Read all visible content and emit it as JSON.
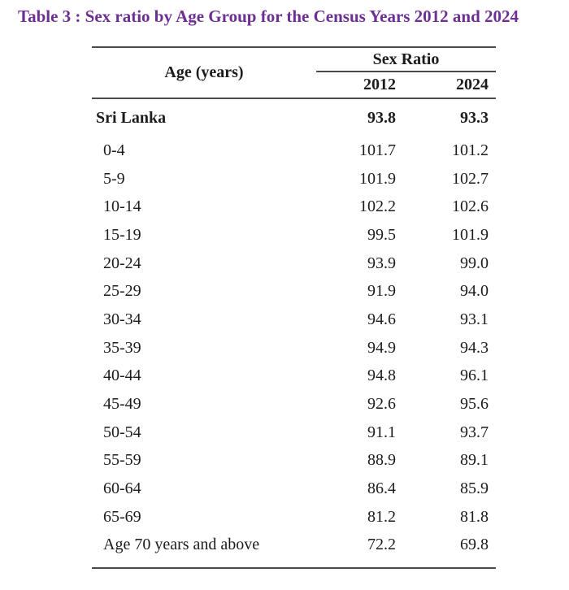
{
  "title": "Table 3 : Sex ratio by Age Group for the Census Years 2012 and 2024",
  "colors": {
    "title_accent": "#6d2f93",
    "text": "#1c1c1c",
    "rule": "#4a4a4a",
    "background": "#ffffff"
  },
  "table": {
    "age_header": "Age (years)",
    "group_header": "Sex Ratio",
    "year_headers": [
      "2012",
      "2024"
    ],
    "rows": [
      {
        "label": "Sri Lanka",
        "v2012": "93.8",
        "v2024": "93.3",
        "bold": true
      },
      {
        "label": "0-4",
        "v2012": "101.7",
        "v2024": "101.2"
      },
      {
        "label": "5-9",
        "v2012": "101.9",
        "v2024": "102.7"
      },
      {
        "label": "10-14",
        "v2012": "102.2",
        "v2024": "102.6"
      },
      {
        "label": "15-19",
        "v2012": "99.5",
        "v2024": "101.9"
      },
      {
        "label": "20-24",
        "v2012": "93.9",
        "v2024": "99.0"
      },
      {
        "label": "25-29",
        "v2012": "91.9",
        "v2024": "94.0"
      },
      {
        "label": "30-34",
        "v2012": "94.6",
        "v2024": "93.1"
      },
      {
        "label": "35-39",
        "v2012": "94.9",
        "v2024": "94.3"
      },
      {
        "label": "40-44",
        "v2012": "94.8",
        "v2024": "96.1"
      },
      {
        "label": "45-49",
        "v2012": "92.6",
        "v2024": "95.6"
      },
      {
        "label": "50-54",
        "v2012": "91.1",
        "v2024": "93.7"
      },
      {
        "label": "55-59",
        "v2012": "88.9",
        "v2024": "89.1"
      },
      {
        "label": "60-64",
        "v2012": "86.4",
        "v2024": "85.9"
      },
      {
        "label": "65-69",
        "v2012": "81.2",
        "v2024": "81.8"
      },
      {
        "label": "Age 70 years and above",
        "v2012": "72.2",
        "v2024": "69.8"
      }
    ]
  }
}
